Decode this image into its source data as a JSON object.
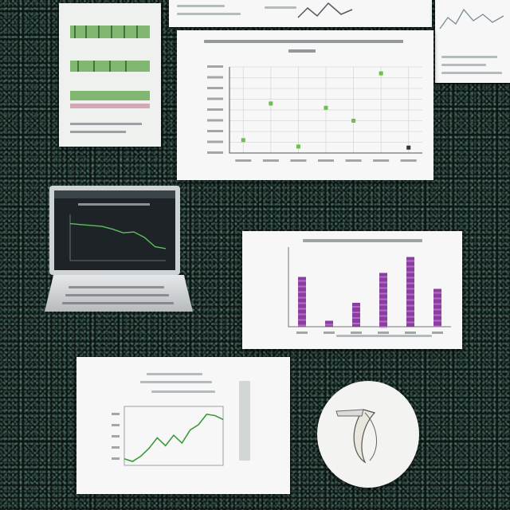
{
  "scene": {
    "icons": [
      "notebook-icon",
      "laptop-icon",
      "banana-icon"
    ]
  },
  "chart_data": [
    {
      "type": "scatter",
      "x": [
        1,
        2,
        3,
        4,
        5,
        6,
        7
      ],
      "y": [
        1.2,
        4.6,
        0.6,
        4.2,
        3.0,
        7.4,
        0.5
      ],
      "xlim": [
        0.5,
        7.5
      ],
      "ylim": [
        0,
        8
      ]
    },
    {
      "type": "bar",
      "categories": [
        "1",
        "2",
        "3",
        "4",
        "5",
        "6"
      ],
      "values": [
        5.0,
        0.6,
        2.4,
        5.4,
        7.0,
        3.8
      ],
      "ylim": [
        0,
        8
      ]
    },
    {
      "type": "line",
      "x": [
        1,
        2,
        3,
        4,
        5,
        6,
        7,
        8,
        9,
        10,
        11,
        12,
        13
      ],
      "y": [
        1.0,
        0.6,
        1.4,
        2.6,
        4.2,
        3.0,
        4.6,
        3.4,
        5.4,
        6.2,
        7.8,
        7.6,
        7.0
      ],
      "ylim": [
        0,
        9
      ]
    },
    {
      "type": "line",
      "x": [
        1,
        2,
        3,
        4,
        5,
        6,
        7,
        8,
        9,
        10
      ],
      "y": [
        8,
        7.8,
        7.6,
        7.4,
        6.8,
        6.0,
        6.2,
        5.0,
        3.0,
        2.6
      ],
      "ylim": [
        0,
        10
      ]
    }
  ]
}
